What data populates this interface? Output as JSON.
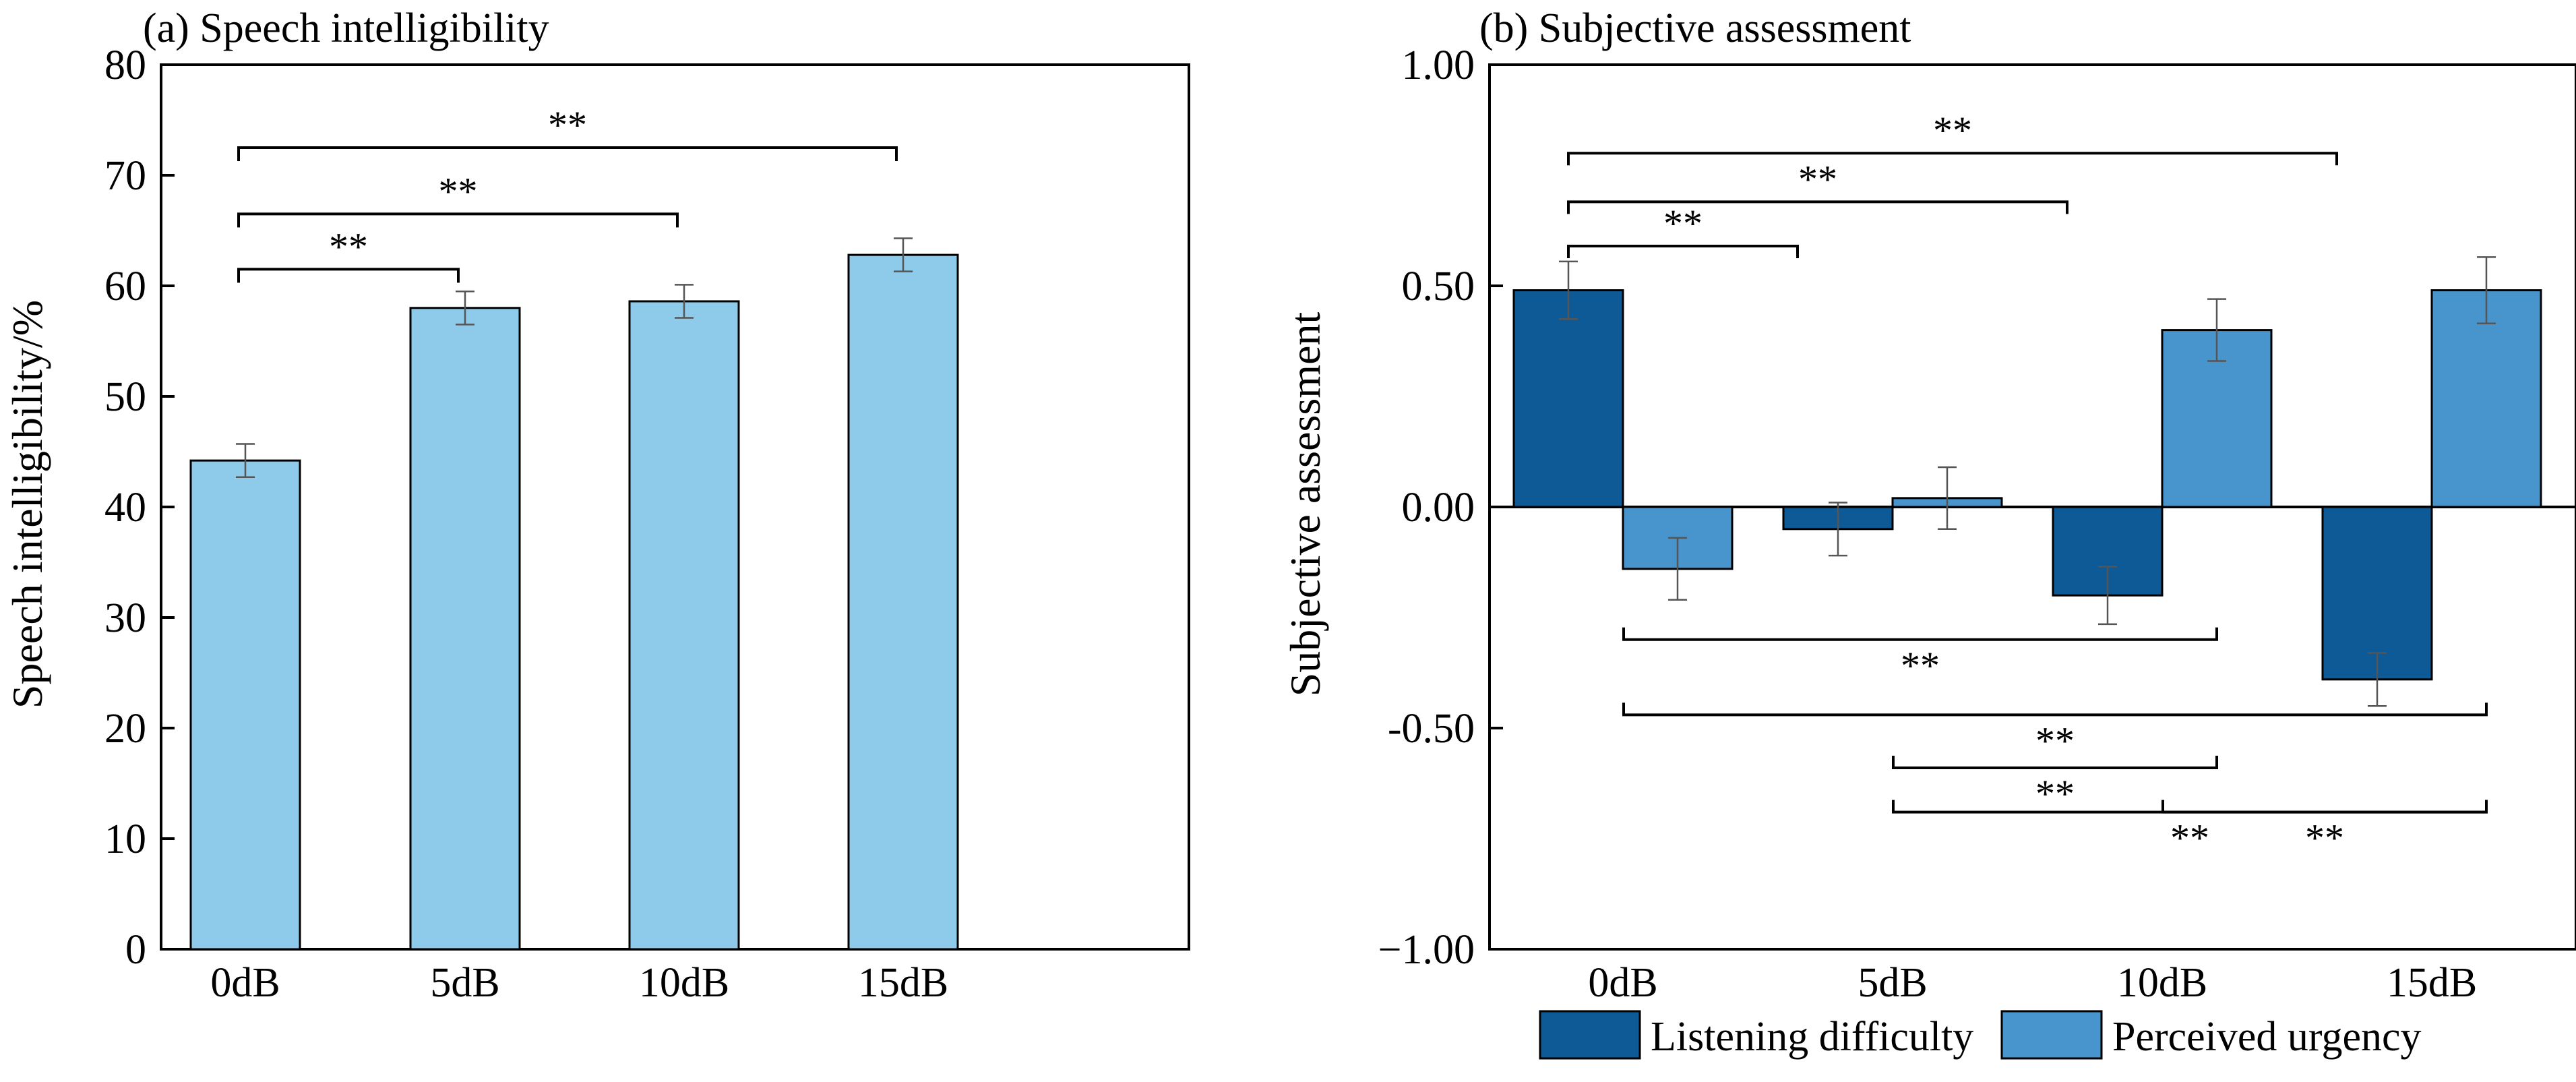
{
  "chart_data": [
    {
      "id": "a",
      "type": "bar",
      "title": "(a) Speech intelligibility",
      "xlabel": "",
      "ylabel": "Speech intelligibility/%",
      "categories": [
        "0dB",
        "5dB",
        "10dB",
        "15dB"
      ],
      "ylim": [
        0,
        80
      ],
      "yticks": [
        0,
        10,
        20,
        30,
        40,
        50,
        60,
        70,
        80
      ],
      "ytick_labels": [
        "0",
        "10",
        "20",
        "30",
        "40",
        "50",
        "60",
        "70",
        "80"
      ],
      "series": [
        {
          "name": "Speech intelligibility",
          "values": [
            44.2,
            58.0,
            58.6,
            62.8
          ],
          "errors": [
            1.5,
            1.5,
            1.5,
            1.5
          ],
          "color": "#8ecae9"
        }
      ],
      "significance": [
        {
          "from": 0,
          "to": 1,
          "label": "**",
          "level": 61.5
        },
        {
          "from": 0,
          "to": 2,
          "label": "**",
          "level": 66.5
        },
        {
          "from": 0,
          "to": 3,
          "label": "**",
          "level": 72.5
        }
      ]
    },
    {
      "id": "b",
      "type": "bar",
      "title": "(b) Subjective assessment",
      "xlabel": "",
      "ylabel": "Subjective assessment",
      "categories": [
        "0dB",
        "5dB",
        "10dB",
        "15dB"
      ],
      "ylim": [
        -1.0,
        1.0
      ],
      "yticks": [
        -1.0,
        -0.5,
        0.0,
        0.5,
        1.0
      ],
      "ytick_labels": [
        "−1.00",
        "-0.50",
        "0.00",
        "0.50",
        "1.00"
      ],
      "series": [
        {
          "name": "Listening difficulty",
          "values": [
            0.49,
            -0.05,
            -0.2,
            -0.39
          ],
          "errors": [
            0.065,
            0.06,
            0.065,
            0.06
          ],
          "color": "#0e5a96"
        },
        {
          "name": "Perceived urgency",
          "values": [
            -0.14,
            0.02,
            0.4,
            0.49
          ],
          "errors": [
            0.07,
            0.07,
            0.07,
            0.075
          ],
          "color": "#4894cd"
        }
      ],
      "legend_position": "bottom-center",
      "significance": [
        {
          "from": 0,
          "to": 1,
          "direction": "down",
          "level": 0.59,
          "label": "**"
        },
        {
          "from": 0,
          "to": 2,
          "direction": "down",
          "level": 0.69,
          "label": "**"
        },
        {
          "from": 0,
          "to": 3,
          "direction": "down",
          "level": 0.8,
          "label": "**"
        },
        {
          "from": 0,
          "to": 2,
          "direction": "up",
          "level": -0.3,
          "label": "**"
        },
        {
          "from": 0,
          "to": 3,
          "direction": "up",
          "level": -0.47,
          "label": "**"
        },
        {
          "from": 1,
          "to": 2,
          "direction": "up",
          "level": -0.59,
          "label": "**"
        },
        {
          "from": 1,
          "to": 3,
          "direction": "up",
          "level": -0.69,
          "label": "**"
        },
        {
          "from": 2,
          "to": 3,
          "direction": "up",
          "level": -0.69,
          "label": "**"
        }
      ]
    }
  ]
}
